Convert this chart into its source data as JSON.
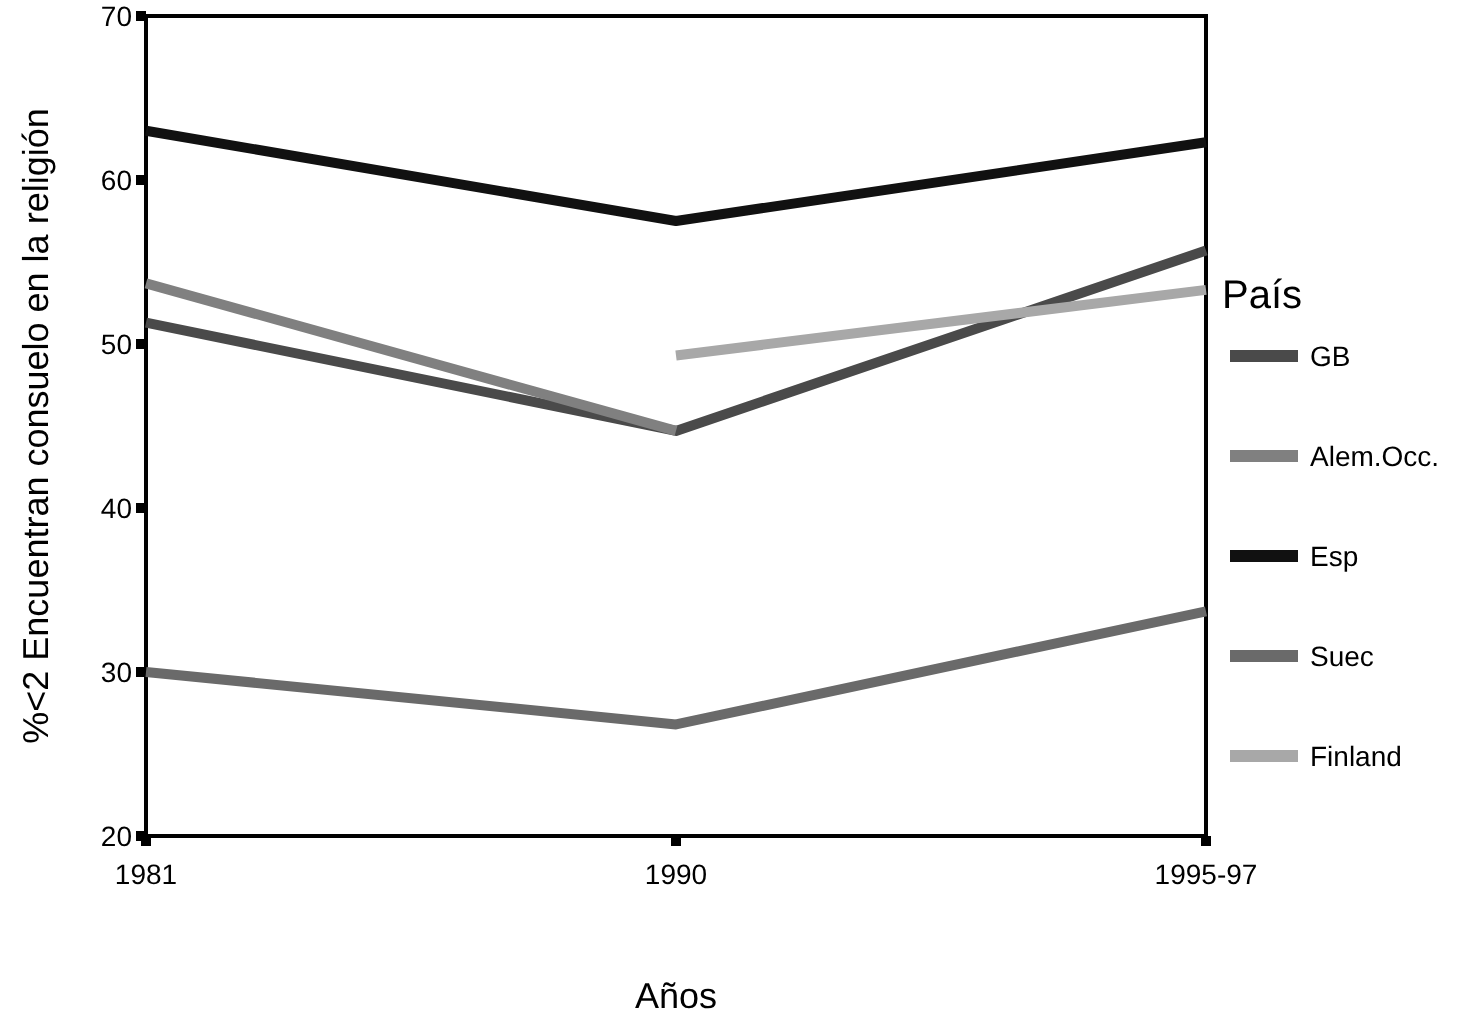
{
  "chart_data": {
    "type": "line",
    "xlabel": "Años",
    "ylabel": "%<2 Encuentran consuelo en la religión",
    "legend_title": "País",
    "categories": [
      "1981",
      "1990",
      "1995-97"
    ],
    "ylim": [
      20,
      70
    ],
    "yticks": [
      20,
      30,
      40,
      50,
      60,
      70
    ],
    "grid": false,
    "legend": "right",
    "line_style": "solid",
    "marker": "none",
    "series": [
      {
        "name": "GB",
        "color": "#4a4a4a",
        "values": [
          51.3,
          44.7,
          55.7
        ]
      },
      {
        "name": "Alem.Occ.",
        "color": "#808080",
        "values": [
          53.7,
          44.7,
          null
        ]
      },
      {
        "name": "Esp",
        "color": "#111111",
        "values": [
          63,
          57.5,
          62.3
        ]
      },
      {
        "name": "Suec",
        "color": "#6a6a6a",
        "values": [
          30,
          26.8,
          33.7
        ]
      },
      {
        "name": "Finland",
        "color": "#a8a8a8",
        "values": [
          null,
          49.3,
          53.3
        ]
      }
    ]
  }
}
